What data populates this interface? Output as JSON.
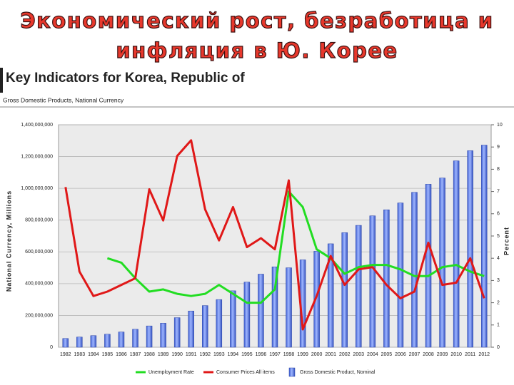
{
  "slide_title": [
    "Экономический рост, безработица и",
    "инфляция в Ю. Корее"
  ],
  "chart_data": {
    "type": "combo",
    "title": "Key Indicators for Korea, Republic of",
    "subtitle": "Gross Domestic Products, National Currency",
    "y_label": "National Currency, Millions",
    "y2_label": "Percent",
    "categories": [
      "1982",
      "1983",
      "1984",
      "1985",
      "1986",
      "1987",
      "1988",
      "1989",
      "1990",
      "1991",
      "1992",
      "1993",
      "1994",
      "1995",
      "1996",
      "1997",
      "1998",
      "1999",
      "2000",
      "2001",
      "2002",
      "2003",
      "2004",
      "2005",
      "2006",
      "2007",
      "2008",
      "2009",
      "2010",
      "2011",
      "2012"
    ],
    "ylim": [
      0,
      1400000000
    ],
    "yticks": [
      {
        "value": 0,
        "label": "0"
      },
      {
        "value": 200000000,
        "label": "200,000,000"
      },
      {
        "value": 400000000,
        "label": "400,000,000"
      },
      {
        "value": 600000000,
        "label": "600,000,000"
      },
      {
        "value": 800000000,
        "label": "800,000,000"
      },
      {
        "value": 1000000000,
        "label": "1,000,000,000"
      },
      {
        "value": 1200000000,
        "label": "1,200,000,000"
      },
      {
        "value": 1400000000,
        "label": "1,400,000,000"
      }
    ],
    "y2lim": [
      0,
      10
    ],
    "y2ticks": [
      0,
      1,
      2,
      3,
      4,
      5,
      6,
      7,
      8,
      9,
      10
    ],
    "grid": true,
    "series": [
      {
        "name": "Unemployment Rate",
        "type": "line",
        "axis": "y2",
        "color": "#22dd22",
        "values": [
          null,
          null,
          null,
          4.0,
          3.8,
          3.1,
          2.5,
          2.6,
          2.4,
          2.3,
          2.4,
          2.8,
          2.4,
          2.0,
          2.0,
          2.6,
          7.0,
          6.3,
          4.4,
          4.0,
          3.3,
          3.6,
          3.7,
          3.7,
          3.5,
          3.2,
          3.2,
          3.6,
          3.7,
          3.4,
          3.2
        ]
      },
      {
        "name": "Consumer Prices All items",
        "type": "line",
        "axis": "y2",
        "color": "#e01818",
        "values": [
          7.2,
          3.4,
          2.3,
          2.5,
          2.8,
          3.1,
          7.1,
          5.7,
          8.6,
          9.3,
          6.2,
          4.8,
          6.3,
          4.5,
          4.9,
          4.4,
          7.5,
          0.8,
          2.3,
          4.1,
          2.8,
          3.5,
          3.6,
          2.8,
          2.2,
          2.5,
          4.7,
          2.8,
          2.9,
          4.0,
          2.2
        ]
      },
      {
        "name": "Gross Domestic Product, Nominal",
        "type": "bar",
        "color": "#6a8cec",
        "values": [
          55000000,
          64000000,
          73000000,
          82000000,
          96000000,
          113000000,
          134000000,
          151000000,
          186000000,
          228000000,
          262000000,
          300000000,
          355000000,
          410000000,
          460000000,
          506000000,
          500000000,
          550000000,
          604000000,
          651000000,
          721000000,
          767000000,
          827000000,
          865000000,
          908000000,
          975000000,
          1026000000,
          1065000000,
          1173000000,
          1237000000,
          1272000000
        ]
      }
    ]
  }
}
